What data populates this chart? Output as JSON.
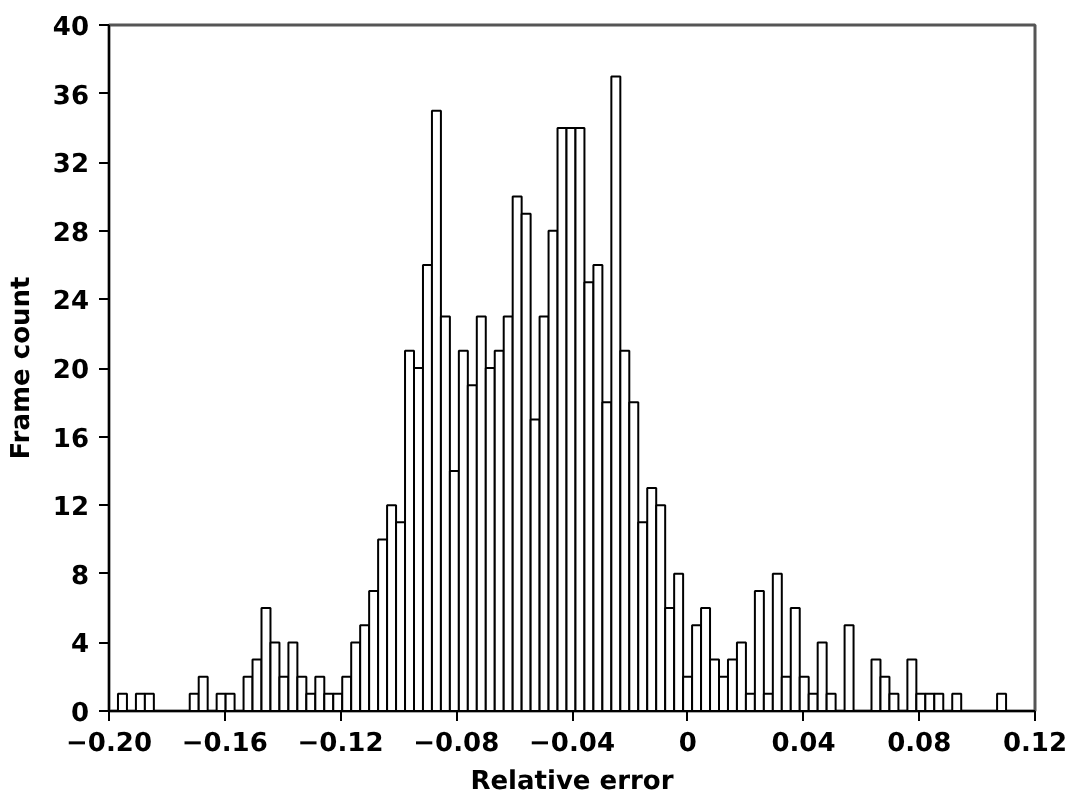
{
  "chart_data": {
    "type": "histogram",
    "xlabel": "Relative error",
    "ylabel": "Frame count",
    "bins": [
      -0.2,
      -0.1969,
      -0.1938,
      -0.1907,
      -0.1876,
      -0.1845,
      -0.1814,
      -0.1783,
      -0.1752,
      -0.1721,
      -0.169,
      -0.1659,
      -0.1628,
      -0.1597,
      -0.1566,
      -0.1535,
      -0.1504,
      -0.1473,
      -0.1442,
      -0.1411,
      -0.138,
      -0.1349,
      -0.1318,
      -0.1287,
      -0.1256,
      -0.1225,
      -0.1194,
      -0.1163,
      -0.1132,
      -0.1101,
      -0.107,
      -0.1039,
      -0.1008,
      -0.0977,
      -0.0946,
      -0.0915,
      -0.0884,
      -0.0853,
      -0.0822,
      -0.0791,
      -0.076,
      -0.0729,
      -0.0698,
      -0.0667,
      -0.0636,
      -0.0605,
      -0.0574,
      -0.0543,
      -0.0512,
      -0.0481,
      -0.045,
      -0.0419,
      -0.0388,
      -0.0357,
      -0.0326,
      -0.0295,
      -0.0264,
      -0.0233,
      -0.0202,
      -0.0171,
      -0.014,
      -0.0109,
      -0.0078,
      -0.0047,
      -0.0016,
      0.0015,
      0.0046,
      0.0077,
      0.0108,
      0.0139,
      0.017,
      0.0201,
      0.0232,
      0.0263,
      0.0294,
      0.0325,
      0.0356,
      0.0387,
      0.0418,
      0.0449,
      0.048,
      0.0511,
      0.0542,
      0.0573,
      0.0604,
      0.0635,
      0.0666,
      0.0697,
      0.0728,
      0.0759,
      0.079,
      0.0821,
      0.0852,
      0.0883,
      0.0914,
      0.0945,
      0.0976,
      0.1007,
      0.1038,
      0.1069,
      0.11,
      0.1131,
      0.1162,
      0.1193
    ],
    "values": [
      0,
      1,
      0,
      1,
      1,
      0,
      0,
      0,
      0,
      1,
      2,
      0,
      1,
      1,
      0,
      2,
      3,
      6,
      4,
      2,
      4,
      2,
      1,
      2,
      1,
      1,
      2,
      4,
      5,
      7,
      10,
      12,
      11,
      21,
      20,
      26,
      35,
      23,
      14,
      21,
      19,
      23,
      20,
      21,
      23,
      30,
      29,
      17,
      23,
      28,
      34,
      34,
      34,
      25,
      26,
      18,
      37,
      21,
      18,
      11,
      13,
      12,
      6,
      8,
      2,
      5,
      6,
      3,
      2,
      3,
      4,
      1,
      7,
      1,
      8,
      2,
      6,
      2,
      1,
      4,
      1,
      0,
      5,
      0,
      0,
      3,
      2,
      1,
      0,
      3,
      1,
      1,
      1,
      0,
      1,
      0,
      0,
      0,
      0,
      1,
      0,
      0,
      0
    ],
    "color": "#ffffff",
    "xlim": [
      -0.2,
      0.12
    ],
    "xticks": [
      {
        "value": -0.2,
        "label": "−0.20"
      },
      {
        "value": -0.16,
        "label": "−0.16"
      },
      {
        "value": -0.12,
        "label": "−0.12"
      },
      {
        "value": -0.08,
        "label": "−0.08"
      },
      {
        "value": -0.04,
        "label": "−0.04"
      },
      0,
      {
        "value": 0.04,
        "label": "0.04"
      },
      {
        "value": 0.08,
        "label": "0.08"
      },
      {
        "value": 0.12,
        "label": "0.12"
      }
    ],
    "ylim": [
      0,
      40
    ],
    "yticks": [
      0,
      4,
      8,
      12,
      16,
      20,
      24,
      28,
      32,
      36,
      40
    ],
    "grid": false
  }
}
